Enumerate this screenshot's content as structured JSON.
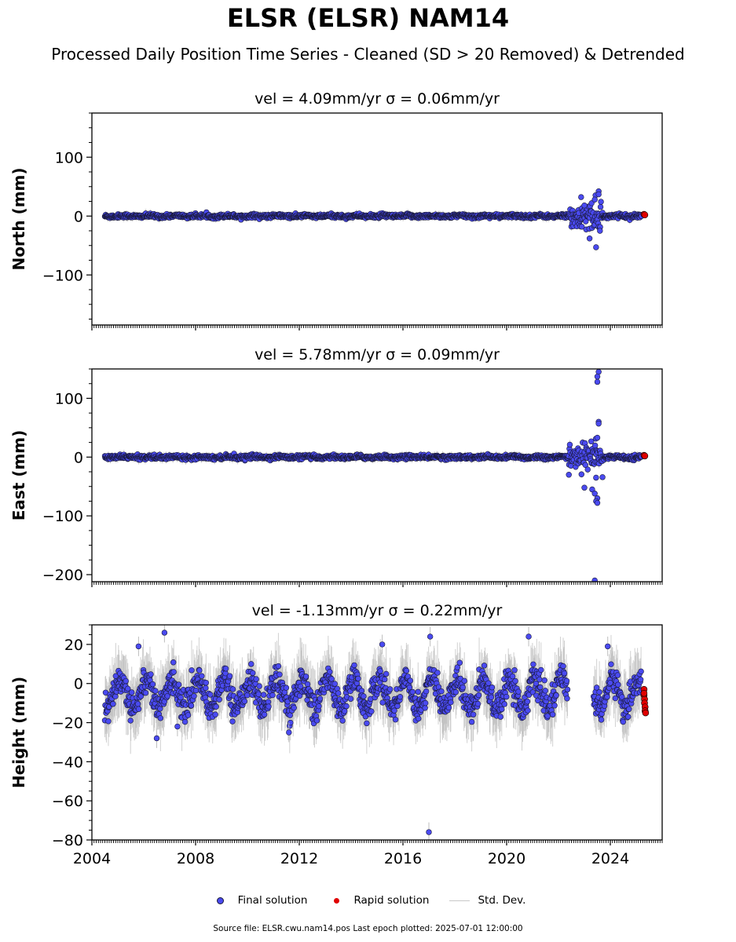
{
  "title": "ELSR (ELSR) NAM14",
  "subtitle": "Processed Daily Position Time Series - Cleaned (SD > 20 Removed) & Detrended",
  "legend": {
    "final": "Final solution",
    "rapid": "Rapid solution",
    "std": "Std. Dev."
  },
  "source": "Source file: ELSR.cwu.nam14.pos  Last epoch plotted: 2025-07-01 12:00:00",
  "colors": {
    "final": "#4a4af0",
    "rapid": "#e00000",
    "std": "#bdbdbd",
    "edge": "#1a1a3a"
  },
  "chart_data": [
    {
      "type": "scatter",
      "title": "vel = 4.09mm/yr   σ = 0.06mm/yr",
      "ylabel": "North (mm)",
      "xlim": [
        2004.0,
        2026.0
      ],
      "ylim": [
        -185,
        175
      ],
      "yticks": [
        -100,
        0,
        100
      ],
      "xticks": [
        2004,
        2008,
        2012,
        2016,
        2020,
        2024
      ],
      "show_xtick_labels": false,
      "model": {
        "x_range": [
          2004.5,
          2025.5
        ],
        "noise": 1.6,
        "seasonal_amplitude": 0.7,
        "gaps": [],
        "disturbed_period": {
          "x": [
            2022.4,
            2023.7
          ],
          "spread": 15
        }
      },
      "outliers": [
        {
          "x": 2023.45,
          "y": -53
        },
        {
          "x": 2023.55,
          "y": 42
        },
        {
          "x": 2023.55,
          "y": 37
        },
        {
          "x": 2023.2,
          "y": -38
        },
        {
          "x": 2023.6,
          "y": -25
        },
        {
          "x": 2023.0,
          "y": 18
        },
        {
          "x": 2023.4,
          "y": 28
        },
        {
          "x": 2022.9,
          "y": -18
        }
      ],
      "rapid_points": [
        {
          "x": 2025.3,
          "y": 3
        },
        {
          "x": 2025.33,
          "y": 2
        }
      ]
    },
    {
      "type": "scatter",
      "title": "vel = 5.78mm/yr   σ = 0.09mm/yr",
      "ylabel": "East (mm)",
      "xlim": [
        2004.0,
        2026.0
      ],
      "ylim": [
        -212,
        150
      ],
      "yticks": [
        -200,
        -100,
        0,
        100
      ],
      "xticks": [
        2004,
        2008,
        2012,
        2016,
        2020,
        2024
      ],
      "show_xtick_labels": false,
      "model": {
        "x_range": [
          2004.5,
          2025.5
        ],
        "noise": 1.7,
        "seasonal_amplitude": 0.8,
        "gaps": [],
        "disturbed_period": {
          "x": [
            2022.4,
            2023.7
          ],
          "spread": 12
        }
      },
      "outliers": [
        {
          "x": 2023.55,
          "y": 145
        },
        {
          "x": 2023.5,
          "y": 137
        },
        {
          "x": 2023.5,
          "y": 128
        },
        {
          "x": 2023.55,
          "y": 60
        },
        {
          "x": 2023.55,
          "y": 57
        },
        {
          "x": 2023.5,
          "y": 33
        },
        {
          "x": 2023.45,
          "y": -35
        },
        {
          "x": 2023.0,
          "y": -52
        },
        {
          "x": 2023.3,
          "y": -55
        },
        {
          "x": 2023.4,
          "y": -62
        },
        {
          "x": 2023.5,
          "y": -70
        },
        {
          "x": 2023.45,
          "y": -75
        },
        {
          "x": 2023.5,
          "y": -78
        },
        {
          "x": 2022.4,
          "y": -30
        },
        {
          "x": 2023.4,
          "y": -210
        }
      ],
      "rapid_points": [
        {
          "x": 2025.3,
          "y": 3
        },
        {
          "x": 2025.33,
          "y": 2
        }
      ]
    },
    {
      "type": "scatter",
      "title": "vel = -1.13mm/yr   σ = 0.22mm/yr",
      "ylabel": "Height (mm)",
      "xlim": [
        2004.0,
        2026.0
      ],
      "ylim": [
        -80,
        30
      ],
      "yticks": [
        -80,
        -60,
        -40,
        -20,
        0,
        20
      ],
      "xticks": [
        2004,
        2008,
        2012,
        2016,
        2020,
        2024
      ],
      "show_xtick_labels": true,
      "model": {
        "x_range": [
          2004.5,
          2025.5
        ],
        "noise": 3.6,
        "seasonal_amplitude": 7.5,
        "seasonal_phase": 0.15,
        "offset": -5,
        "gaps": [
          [
            2022.35,
            2023.35
          ]
        ],
        "disturbed_period": null
      },
      "outliers": [
        {
          "x": 2017.0,
          "y": -76
        },
        {
          "x": 2017.05,
          "y": 24
        },
        {
          "x": 2020.85,
          "y": 24
        },
        {
          "x": 2006.8,
          "y": 26
        },
        {
          "x": 2006.5,
          "y": -28
        },
        {
          "x": 2015.2,
          "y": 20
        },
        {
          "x": 2023.9,
          "y": 19
        },
        {
          "x": 2005.8,
          "y": 19
        },
        {
          "x": 2011.6,
          "y": -25
        },
        {
          "x": 2007.3,
          "y": -22
        }
      ],
      "rapid_points": [
        {
          "x": 2025.3,
          "y": -3
        },
        {
          "x": 2025.3,
          "y": -6
        },
        {
          "x": 2025.32,
          "y": -8
        },
        {
          "x": 2025.32,
          "y": -10
        },
        {
          "x": 2025.34,
          "y": -12
        },
        {
          "x": 2025.34,
          "y": -14
        },
        {
          "x": 2025.36,
          "y": -15
        },
        {
          "x": 2025.3,
          "y": -5
        }
      ]
    }
  ]
}
